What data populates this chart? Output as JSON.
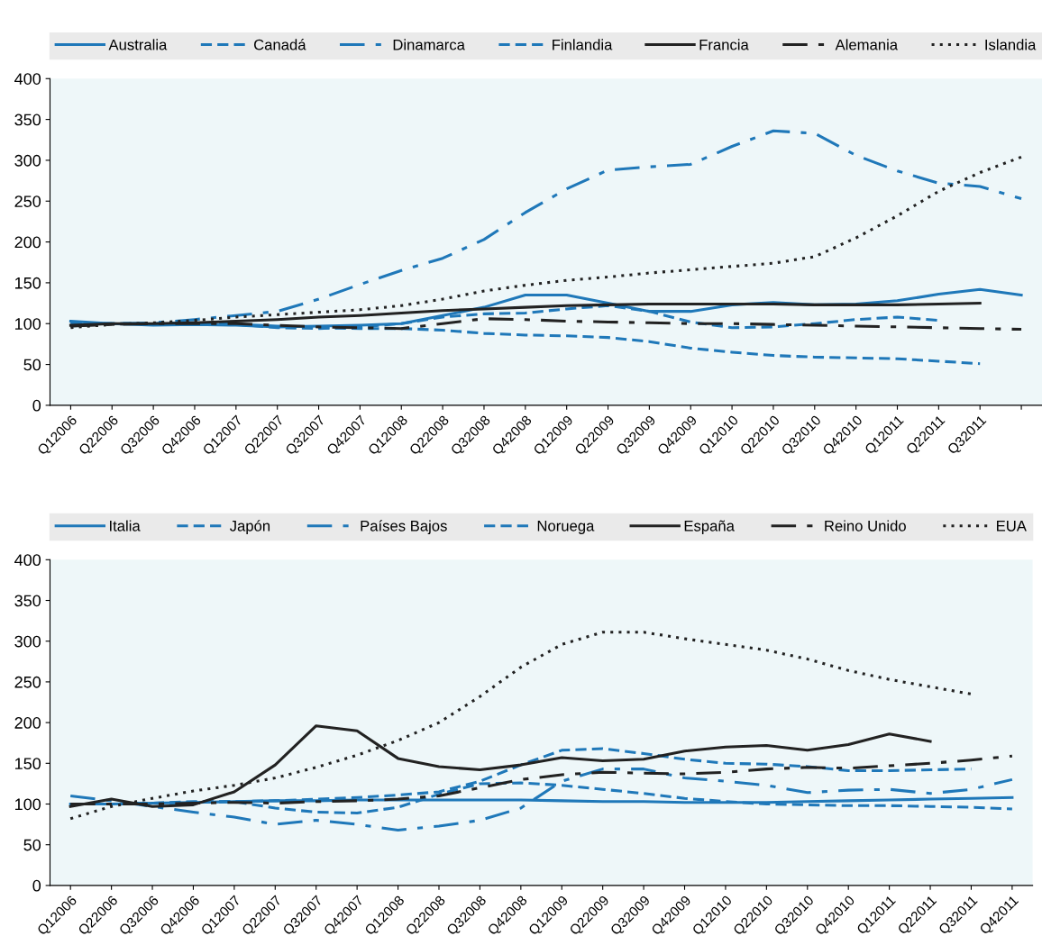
{
  "chart_data": [
    {
      "type": "line",
      "categories": [
        "Q12006",
        "Q22006",
        "Q32006",
        "Q42006",
        "Q12007",
        "Q22007",
        "Q32007",
        "Q42007",
        "Q12008",
        "Q22008",
        "Q32008",
        "Q42008",
        "Q12009",
        "Q22009",
        "Q32009",
        "Q42009",
        "Q12010",
        "Q22010",
        "Q32010",
        "Q42010",
        "Q12011",
        "Q22011",
        "Q32011",
        null
      ],
      "ylim": [
        0,
        400
      ],
      "yticks": [
        0,
        50,
        100,
        150,
        200,
        250,
        300,
        350,
        400
      ],
      "legend": "top",
      "grid": false,
      "series": [
        {
          "name": "Australia",
          "color": "#1f78b9",
          "line_style": "solid",
          "values": [
            103,
            100,
            98,
            99,
            98,
            96,
            97,
            98,
            100,
            110,
            120,
            135,
            135,
            125,
            115,
            115,
            123,
            126,
            123,
            124,
            128,
            136,
            142,
            135
          ]
        },
        {
          "name": "Canadá",
          "color": "#1f78b9",
          "line_style": "dashed",
          "values": [
            100,
            100,
            100,
            101,
            99,
            97,
            95,
            94,
            94,
            92,
            88,
            86,
            85,
            83,
            78,
            70,
            65,
            61,
            59,
            58,
            57,
            54,
            51,
            null
          ]
        },
        {
          "name": "Dinamarca",
          "color": "#1f78b9",
          "line_style": "dashdot",
          "values": [
            97,
            100,
            101,
            105,
            110,
            115,
            130,
            148,
            165,
            180,
            203,
            236,
            265,
            288,
            292,
            295,
            317,
            336,
            333,
            306,
            287,
            272,
            268,
            253
          ]
        },
        {
          "name": "Finlandia",
          "color": "#1f78b9",
          "line_style": "dashed",
          "values": [
            100,
            100,
            100,
            101,
            99,
            95,
            94,
            96,
            100,
            108,
            112,
            113,
            118,
            122,
            115,
            102,
            95,
            96,
            100,
            105,
            108,
            104,
            null,
            null
          ]
        },
        {
          "name": "Francia",
          "color": "#222222",
          "line_style": "solid",
          "values": [
            98,
            100,
            100,
            101,
            103,
            105,
            108,
            110,
            113,
            116,
            118,
            120,
            122,
            123,
            124,
            124,
            124,
            124,
            123,
            123,
            123,
            124,
            125,
            null
          ]
        },
        {
          "name": "Alemania",
          "color": "#222222",
          "line_style": "dashdot",
          "values": [
            97,
            99,
            100,
            100,
            100,
            98,
            96,
            95,
            94,
            100,
            106,
            105,
            103,
            102,
            101,
            100,
            100,
            99,
            98,
            97,
            96,
            95,
            94,
            93
          ]
        },
        {
          "name": "Islandia",
          "color": "#222222",
          "line_style": "dotted",
          "values": [
            95,
            99,
            101,
            104,
            108,
            111,
            114,
            117,
            122,
            130,
            140,
            147,
            153,
            157,
            162,
            166,
            170,
            174,
            182,
            205,
            232,
            262,
            285,
            304
          ]
        }
      ]
    },
    {
      "type": "line",
      "categories": [
        "Q12006",
        "Q22006",
        "Q32006",
        "Q42006",
        "Q12007",
        "Q22007",
        "Q32007",
        "Q42007",
        "Q12008",
        "Q22008",
        "Q32008",
        "Q42008",
        "Q12009",
        "Q22009",
        "Q32009",
        "Q42009",
        "Q12010",
        "Q22010",
        "Q32010",
        "Q42010",
        "Q12011",
        "Q22011",
        "Q32011",
        "Q42011"
      ],
      "ylim": [
        0,
        400
      ],
      "yticks": [
        0,
        50,
        100,
        150,
        200,
        250,
        300,
        350,
        400
      ],
      "legend": "top",
      "grid": false,
      "series": [
        {
          "name": "Italia",
          "color": "#1f78b9",
          "line_style": "solid",
          "values": [
            100,
            100,
            101,
            102,
            103,
            104,
            104,
            105,
            105,
            105,
            105,
            105,
            104,
            103,
            103,
            102,
            102,
            102,
            103,
            104,
            105,
            106,
            107,
            108
          ]
        },
        {
          "name": "Japón",
          "color": "#1f78b9",
          "line_style": "dashed",
          "values": [
            100,
            100,
            101,
            103,
            103,
            95,
            90,
            89,
            96,
            112,
            125,
            126,
            123,
            118,
            113,
            107,
            103,
            100,
            99,
            98,
            98,
            97,
            96,
            94
          ]
        },
        {
          "name": "Países Bajos",
          "color": "#1f78b9",
          "line_style": "dashdot",
          "values": [
            110,
            104,
            97,
            90,
            84,
            75,
            80,
            75,
            68,
            73,
            80,
            95,
            128,
            143,
            143,
            132,
            128,
            123,
            114,
            117,
            118,
            113,
            118,
            130
          ]
        },
        {
          "name": "Noruega",
          "color": "#1f78b9",
          "line_style": "dashed",
          "values": [
            100,
            100,
            101,
            102,
            103,
            104,
            106,
            108,
            111,
            115,
            128,
            148,
            166,
            168,
            162,
            155,
            150,
            149,
            146,
            141,
            141,
            142,
            143,
            null
          ]
        },
        {
          "name": "España",
          "color": "#222222",
          "line_style": "solid",
          "values": [
            97,
            106,
            97,
            99,
            115,
            148,
            196,
            190,
            156,
            146,
            142,
            148,
            157,
            153,
            155,
            165,
            170,
            172,
            166,
            173,
            186,
            177,
            null,
            null
          ]
        },
        {
          "name": "Reino Unido",
          "color": "#222222",
          "line_style": "dashdot",
          "values": [
            100,
            100,
            100,
            101,
            102,
            101,
            103,
            104,
            106,
            110,
            120,
            130,
            136,
            139,
            138,
            137,
            139,
            143,
            145,
            144,
            147,
            150,
            154,
            159
          ]
        },
        {
          "name": "EUA",
          "color": "#222222",
          "line_style": "dotted",
          "values": [
            82,
            97,
            107,
            116,
            123,
            132,
            145,
            160,
            178,
            200,
            232,
            268,
            296,
            311,
            311,
            303,
            296,
            289,
            278,
            264,
            253,
            244,
            235,
            null
          ]
        }
      ]
    }
  ]
}
